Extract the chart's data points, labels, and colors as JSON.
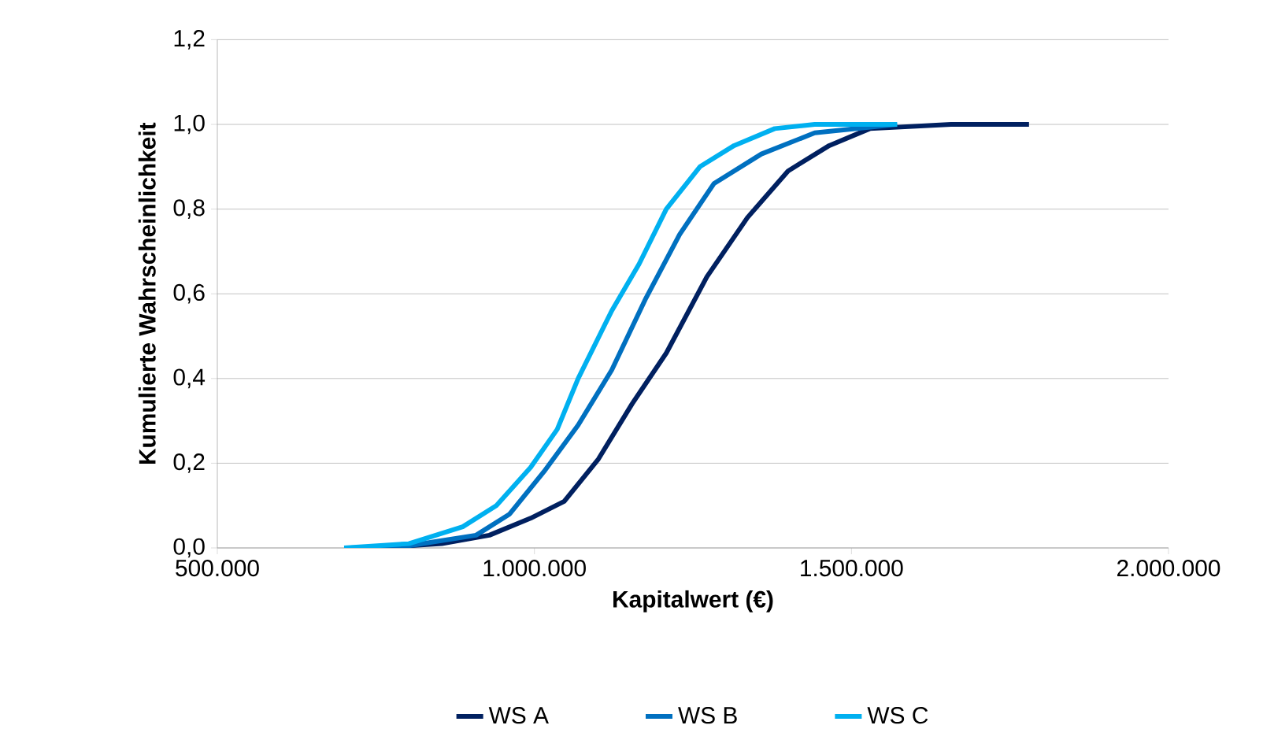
{
  "chart_data": {
    "type": "line",
    "xlabel": "Kapitalwert (€)",
    "ylabel": "Kumulierte Wahrscheinlichkeit",
    "xlim": [
      500000,
      2000000
    ],
    "xticks": [
      {
        "value": 500000,
        "label": "500.000"
      },
      {
        "value": 1000000,
        "label": "1.000.000"
      },
      {
        "value": 1500000,
        "label": "1.500.000"
      },
      {
        "value": 2000000,
        "label": "2.000.000"
      }
    ],
    "ylim": [
      0,
      1.2
    ],
    "yticks": [
      {
        "value": 0,
        "label": "0,0"
      },
      {
        "value": 0.2,
        "label": "0,2"
      },
      {
        "value": 0.4,
        "label": "0,4"
      },
      {
        "value": 0.6,
        "label": "0,6"
      },
      {
        "value": 0.8,
        "label": "0,8"
      },
      {
        "value": 1.0,
        "label": "1,0"
      },
      {
        "value": 1.2,
        "label": "1,2"
      }
    ],
    "grid": "y",
    "legend": "bottom",
    "marker": "none",
    "line_style": "solid",
    "series": [
      {
        "name": "WS A",
        "color": "#002060",
        "x": [
          747000,
          854000,
          929000,
          994000,
          1047000,
          1101000,
          1154000,
          1208000,
          1272000,
          1336000,
          1400000,
          1465000,
          1529000,
          1657000,
          1780000
        ],
        "values": [
          0,
          0.01,
          0.03,
          0.07,
          0.11,
          0.21,
          0.34,
          0.46,
          0.64,
          0.78,
          0.89,
          0.95,
          0.99,
          1.0,
          1.0
        ]
      },
      {
        "name": "WS B",
        "color": "#0070c0",
        "x": [
          710000,
          802000,
          908000,
          961000,
          1015000,
          1069000,
          1122000,
          1176000,
          1229000,
          1283000,
          1358000,
          1442000,
          1572000
        ],
        "values": [
          0,
          0.005,
          0.03,
          0.08,
          0.18,
          0.29,
          0.42,
          0.59,
          0.74,
          0.86,
          0.93,
          0.98,
          1.0
        ]
      },
      {
        "name": "WS C",
        "color": "#00b0f0",
        "x": [
          700000,
          802000,
          887000,
          940000,
          994000,
          1036000,
          1069000,
          1122000,
          1165000,
          1208000,
          1261000,
          1315000,
          1379000,
          1442000,
          1572000
        ],
        "values": [
          0,
          0.01,
          0.05,
          0.1,
          0.19,
          0.28,
          0.4,
          0.56,
          0.67,
          0.8,
          0.9,
          0.95,
          0.99,
          1.0,
          1.0
        ]
      }
    ]
  }
}
